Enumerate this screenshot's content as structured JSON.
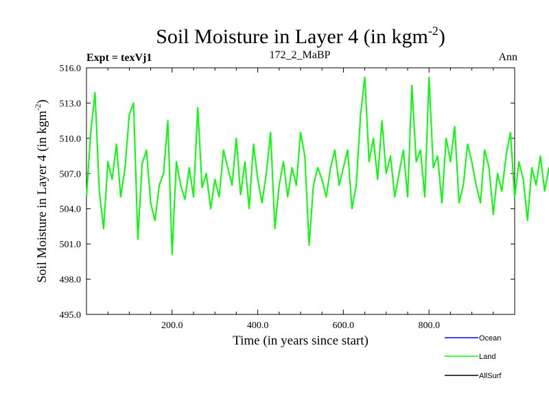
{
  "chart_data": {
    "type": "line",
    "title": "Soil Moisture in Layer 4 (in kgm",
    "title_sup": "-2",
    "title_tail": ")",
    "left_label": "Expt = texVj1",
    "center_label": "172_2_MaBP",
    "right_label": "Ann",
    "xlabel": "Time (in years since start)",
    "ylabel": "Soil Moisture in Layer 4 (in kgm",
    "ylabel_sup": "-2",
    "ylabel_tail": ")",
    "xlim": [
      0,
      1000
    ],
    "ylim": [
      495.0,
      516.0
    ],
    "x_ticks": [
      200,
      400,
      600,
      800
    ],
    "x_tick_labels": [
      "200.0",
      "400.0",
      "600.0",
      "800.0"
    ],
    "y_ticks": [
      495,
      498,
      501,
      504,
      507,
      510,
      513,
      516
    ],
    "y_tick_labels": [
      "495.0",
      "498.0",
      "501.0",
      "504.0",
      "507.0",
      "510.0",
      "513.0",
      "516.0"
    ],
    "series": [
      {
        "name": "Ocean",
        "color": "#0000ff",
        "values": []
      },
      {
        "name": "Land",
        "color": "#00ff00",
        "x_start": 0,
        "x_step": 10,
        "values": [
          505.0,
          510.5,
          513.9,
          505.5,
          502.3,
          508.0,
          506.5,
          509.5,
          505.0,
          507.5,
          512.0,
          513.0,
          501.4,
          507.8,
          509.0,
          504.5,
          503.0,
          506.0,
          507.0,
          511.5,
          500.1,
          508.0,
          506.0,
          504.8,
          507.5,
          505.0,
          512.6,
          505.8,
          507.0,
          504.0,
          506.5,
          505.0,
          509.0,
          507.5,
          506.0,
          510.0,
          505.2,
          508.0,
          504.0,
          509.5,
          506.5,
          504.5,
          507.0,
          510.5,
          502.3,
          506.0,
          508.0,
          505.0,
          507.5,
          506.0,
          510.5,
          508.5,
          500.9,
          506.0,
          507.5,
          506.5,
          505.0,
          507.5,
          509.0,
          506.0,
          507.5,
          509.0,
          504.0,
          506.0,
          512.0,
          515.2,
          508.0,
          510.0,
          506.5,
          511.5,
          507.0,
          508.5,
          505.0,
          507.0,
          509.0,
          505.0,
          514.5,
          508.0,
          509.0,
          505.0,
          515.2,
          507.5,
          508.5,
          504.5,
          510.0,
          508.0,
          511.0,
          504.5,
          506.0,
          509.5,
          508.0,
          506.0,
          504.5,
          509.0,
          507.5,
          503.5,
          507.0,
          505.5,
          508.5,
          510.5,
          505.0,
          508.0,
          506.5,
          503.0,
          507.5,
          506.0,
          508.5,
          505.5,
          507.5,
          504.5,
          509.5,
          506.0,
          508.5,
          505.0,
          506.0,
          504.0,
          507.5,
          505.0,
          508.5,
          507.0,
          504.5,
          509.5,
          505.0,
          503.0,
          502.5,
          503.0,
          504.0,
          504.5,
          503.5,
          510.5,
          505.0,
          507.5,
          511.0,
          503.0,
          506.0,
          507.0,
          499.5,
          504.0,
          505.5,
          502.5,
          501.5,
          507.0,
          504.5,
          504.5,
          502.0,
          506.0,
          503.0,
          506.5,
          500.0,
          507.0,
          509.0,
          497.5,
          503.0,
          502.0,
          506.0,
          507.5,
          505.0,
          507.5,
          509.5,
          507.0,
          505.5,
          506.0,
          505.0,
          505.0,
          503.0,
          501.0,
          500.5,
          498.5,
          503.0,
          497.5,
          496.5,
          505.5,
          504.0,
          506.5,
          507.0,
          506.5,
          505.5,
          507.5,
          506.0,
          508.0,
          506.0,
          507.5,
          506.5,
          509.5,
          508.0,
          505.0,
          506.5,
          509.5,
          508.0,
          506.0,
          507.5,
          508.5,
          510.5,
          509.0,
          506.5,
          508.5,
          515.0,
          512.5,
          511.0,
          514.0,
          511.0,
          509.0,
          508.5,
          510.0,
          507.5,
          503.5,
          501.5,
          505.0,
          508.0,
          504.5,
          509.0,
          507.0,
          505.5,
          503.0,
          505.5,
          506.0,
          504.0,
          508.0,
          513.5,
          510.0,
          507.0,
          505.0,
          504.0,
          503.5,
          507.0,
          510.0,
          508.5,
          507.0,
          508.5,
          507.0
        ]
      },
      {
        "name": "AllSurf",
        "color": "#000000",
        "values": []
      }
    ]
  }
}
